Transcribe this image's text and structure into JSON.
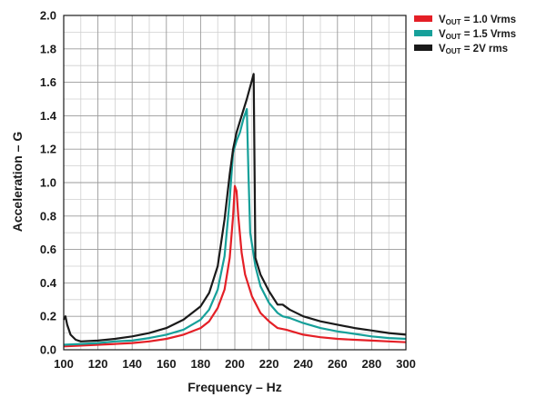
{
  "chart_data": {
    "type": "line",
    "title": "",
    "xlabel": "Frequency – Hz",
    "ylabel": "Acceleration – G",
    "xlim": [
      100,
      300
    ],
    "ylim": [
      0,
      2.0
    ],
    "grid": true,
    "legend_position": "top-right outside",
    "x_ticks": [
      "100",
      "120",
      "140",
      "160",
      "180",
      "200",
      "220",
      "240",
      "260",
      "280",
      "300"
    ],
    "y_ticks": [
      "0.0",
      "0.2",
      "0.4",
      "0.6",
      "0.8",
      "1.0",
      "1.2",
      "1.4",
      "1.6",
      "1.8",
      "2.0"
    ],
    "series": [
      {
        "name": "VOUT = 1.0 Vrms",
        "label_main": "V",
        "label_sub": "OUT",
        "label_rest": " =  1.0 Vrms",
        "color": "#e41f26",
        "points": [
          [
            100,
            0.02
          ],
          [
            110,
            0.025
          ],
          [
            120,
            0.03
          ],
          [
            130,
            0.035
          ],
          [
            140,
            0.04
          ],
          [
            150,
            0.05
          ],
          [
            160,
            0.065
          ],
          [
            170,
            0.09
          ],
          [
            180,
            0.13
          ],
          [
            185,
            0.17
          ],
          [
            190,
            0.25
          ],
          [
            194,
            0.36
          ],
          [
            197,
            0.55
          ],
          [
            199,
            0.8
          ],
          [
            200,
            0.98
          ],
          [
            201,
            0.95
          ],
          [
            202,
            0.8
          ],
          [
            204,
            0.58
          ],
          [
            206,
            0.45
          ],
          [
            210,
            0.32
          ],
          [
            215,
            0.22
          ],
          [
            220,
            0.17
          ],
          [
            225,
            0.13
          ],
          [
            230,
            0.12
          ],
          [
            240,
            0.09
          ],
          [
            250,
            0.075
          ],
          [
            260,
            0.065
          ],
          [
            270,
            0.06
          ],
          [
            280,
            0.055
          ],
          [
            290,
            0.05
          ],
          [
            300,
            0.045
          ]
        ]
      },
      {
        "name": "VOUT = 1.5 Vrms",
        "label_main": "V",
        "label_sub": "OUT",
        "label_rest": " = 1.5 Vrms",
        "color": "#16a09a",
        "points": [
          [
            100,
            0.03
          ],
          [
            110,
            0.035
          ],
          [
            120,
            0.04
          ],
          [
            130,
            0.05
          ],
          [
            140,
            0.055
          ],
          [
            150,
            0.07
          ],
          [
            160,
            0.09
          ],
          [
            170,
            0.12
          ],
          [
            180,
            0.18
          ],
          [
            185,
            0.24
          ],
          [
            190,
            0.36
          ],
          [
            194,
            0.56
          ],
          [
            197,
            0.9
          ],
          [
            199,
            1.18
          ],
          [
            201,
            1.25
          ],
          [
            203,
            1.3
          ],
          [
            205,
            1.38
          ],
          [
            207,
            1.44
          ],
          [
            208,
            1.05
          ],
          [
            209,
            0.7
          ],
          [
            212,
            0.5
          ],
          [
            215,
            0.38
          ],
          [
            220,
            0.28
          ],
          [
            225,
            0.22
          ],
          [
            228,
            0.2
          ],
          [
            232,
            0.19
          ],
          [
            240,
            0.16
          ],
          [
            250,
            0.13
          ],
          [
            260,
            0.11
          ],
          [
            270,
            0.095
          ],
          [
            280,
            0.08
          ],
          [
            290,
            0.07
          ],
          [
            300,
            0.065
          ]
        ]
      },
      {
        "name": "VOUT = 2V rms",
        "label_main": "V",
        "label_sub": "OUT",
        "label_rest": " = 2V rms",
        "color": "#1a1a1a",
        "points": [
          [
            100,
            0.18
          ],
          [
            101,
            0.2
          ],
          [
            102,
            0.15
          ],
          [
            104,
            0.09
          ],
          [
            107,
            0.06
          ],
          [
            110,
            0.05
          ],
          [
            120,
            0.055
          ],
          [
            130,
            0.065
          ],
          [
            140,
            0.08
          ],
          [
            150,
            0.1
          ],
          [
            160,
            0.13
          ],
          [
            170,
            0.18
          ],
          [
            180,
            0.26
          ],
          [
            185,
            0.34
          ],
          [
            190,
            0.5
          ],
          [
            194,
            0.78
          ],
          [
            197,
            1.05
          ],
          [
            199,
            1.2
          ],
          [
            201,
            1.3
          ],
          [
            204,
            1.4
          ],
          [
            207,
            1.5
          ],
          [
            211,
            1.65
          ],
          [
            212,
            0.55
          ],
          [
            215,
            0.45
          ],
          [
            220,
            0.35
          ],
          [
            225,
            0.27
          ],
          [
            228,
            0.27
          ],
          [
            232,
            0.24
          ],
          [
            240,
            0.2
          ],
          [
            250,
            0.17
          ],
          [
            260,
            0.15
          ],
          [
            270,
            0.13
          ],
          [
            280,
            0.115
          ],
          [
            290,
            0.1
          ],
          [
            300,
            0.09
          ]
        ]
      }
    ]
  }
}
